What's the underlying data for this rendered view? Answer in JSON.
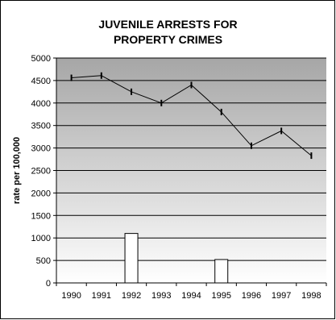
{
  "chart_data": {
    "type": "line",
    "title_lines": [
      "JUVENILE ARRESTS FOR",
      "PROPERTY CRIMES"
    ],
    "xlabel": "",
    "ylabel": "rate per 100,000",
    "categories": [
      "1990",
      "1991",
      "1992",
      "1993",
      "1994",
      "1995",
      "1996",
      "1997",
      "1998"
    ],
    "ylim": [
      0,
      5000
    ],
    "yticks": [
      0,
      500,
      1000,
      1500,
      2000,
      2500,
      3000,
      3500,
      4000,
      4500,
      5000
    ],
    "grid": true,
    "legend": "none",
    "series": [
      {
        "type": "line",
        "values": [
          4560,
          4610,
          4250,
          4000,
          4400,
          3800,
          3050,
          3380,
          2830
        ]
      },
      {
        "type": "bar",
        "values": [
          null,
          null,
          1100,
          null,
          null,
          520,
          null,
          null,
          null
        ]
      }
    ]
  },
  "colors": {
    "plot_gradient_top": "#a6a6a6",
    "plot_gradient_bottom": "#ffffff",
    "gridline": "#000000",
    "line": "#000000",
    "bar_fill": "#ffffff",
    "bar_stroke": "#000000"
  }
}
